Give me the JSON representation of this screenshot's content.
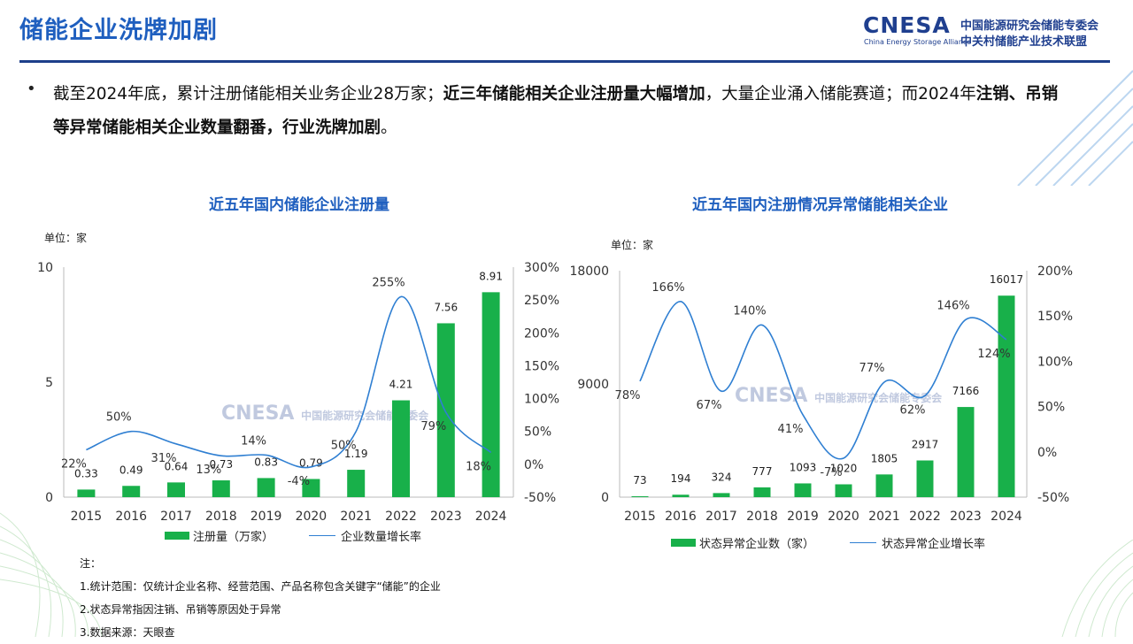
{
  "header": {
    "title": "储能企业洗牌加剧",
    "logo_word": "CNESA",
    "logo_sub": "China Energy Storage Alliance",
    "logo_cn1": "中国能源研究会储能专委会",
    "logo_cn2": "中关村储能产业技术联盟"
  },
  "summary": {
    "bullet": "•",
    "p1": "截至2024年底，累计注册储能相关业务企业28万家；",
    "p2": "近三年储能相关企业注册量大幅增加",
    "p3": "，大量企业涌入储能赛道；而2024年",
    "p4": "注销、吊销等异常储能相关企业数量翻番，行业洗牌加剧",
    "p5": "。"
  },
  "chart_data": [
    {
      "type": "bar",
      "title": "近五年国内储能企业注册量",
      "unit_label": "单位：家",
      "categories": [
        "2015",
        "2016",
        "2017",
        "2018",
        "2019",
        "2020",
        "2021",
        "2022",
        "2023",
        "2024"
      ],
      "series": [
        {
          "name": "注册量（万家）",
          "type": "bar",
          "axis": "left",
          "values": [
            0.33,
            0.49,
            0.64,
            0.73,
            0.83,
            0.79,
            1.19,
            4.21,
            7.56,
            8.91
          ],
          "labels": [
            "0.33",
            "0.49",
            "0.64",
            "0.73",
            "0.83",
            "0.79",
            "1.19",
            "4.21",
            "7.56",
            "8.91"
          ]
        },
        {
          "name": "企业数量增长率",
          "type": "line",
          "axis": "right",
          "values": [
            22,
            50,
            31,
            13,
            14,
            -4,
            50,
            255,
            79,
            18
          ],
          "labels": [
            "22%",
            "50%",
            "31%",
            "13%",
            "14%",
            "-4%",
            "50%",
            "255%",
            "79%",
            "18%"
          ]
        }
      ],
      "y_left": {
        "min": 0,
        "max": 10,
        "ticks": [
          "0",
          "5",
          "10"
        ]
      },
      "y_right": {
        "min": -50,
        "max": 300,
        "ticks": [
          "-50%",
          "0%",
          "50%",
          "100%",
          "150%",
          "200%",
          "250%",
          "300%"
        ]
      },
      "colors": {
        "bar": "#18b04a",
        "line": "#2f7fd2"
      },
      "legend": "bottom"
    },
    {
      "type": "bar",
      "title": "近五年国内注册情况异常储能相关企业",
      "unit_label": "单位：家",
      "categories": [
        "2015",
        "2016",
        "2017",
        "2018",
        "2019",
        "2020",
        "2021",
        "2022",
        "2023",
        "2024"
      ],
      "series": [
        {
          "name": "状态异常企业数（家）",
          "type": "bar",
          "axis": "left",
          "values": [
            73,
            194,
            324,
            777,
            1093,
            1020,
            1805,
            2917,
            7166,
            16017
          ],
          "labels": [
            "73",
            "194",
            "324",
            "777",
            "1093",
            "1020",
            "1805",
            "2917",
            "7166",
            "16017"
          ]
        },
        {
          "name": "状态异常企业增长率",
          "type": "line",
          "axis": "right",
          "values": [
            78,
            166,
            67,
            140,
            41,
            -7,
            77,
            62,
            146,
            124
          ],
          "labels": [
            "78%",
            "166%",
            "67%",
            "140%",
            "41%",
            "-7%",
            "77%",
            "62%",
            "146%",
            "124%"
          ]
        }
      ],
      "y_left": {
        "min": 0,
        "max": 18000,
        "ticks": [
          "0",
          "9000",
          "18000"
        ]
      },
      "y_right": {
        "min": -50,
        "max": 200,
        "ticks": [
          "-50%",
          "0%",
          "50%",
          "100%",
          "150%",
          "200%"
        ]
      },
      "colors": {
        "bar": "#18b04a",
        "line": "#2f7fd2"
      },
      "legend": "bottom"
    }
  ],
  "notes": {
    "heading": "注：",
    "n1": "1.统计范围：仅统计企业名称、经营范围、产品名称包含关键字“储能”的企业",
    "n2": "2.状态异常指因注销、吊销等原因处于异常",
    "n3": "3.数据来源：天眼查"
  }
}
